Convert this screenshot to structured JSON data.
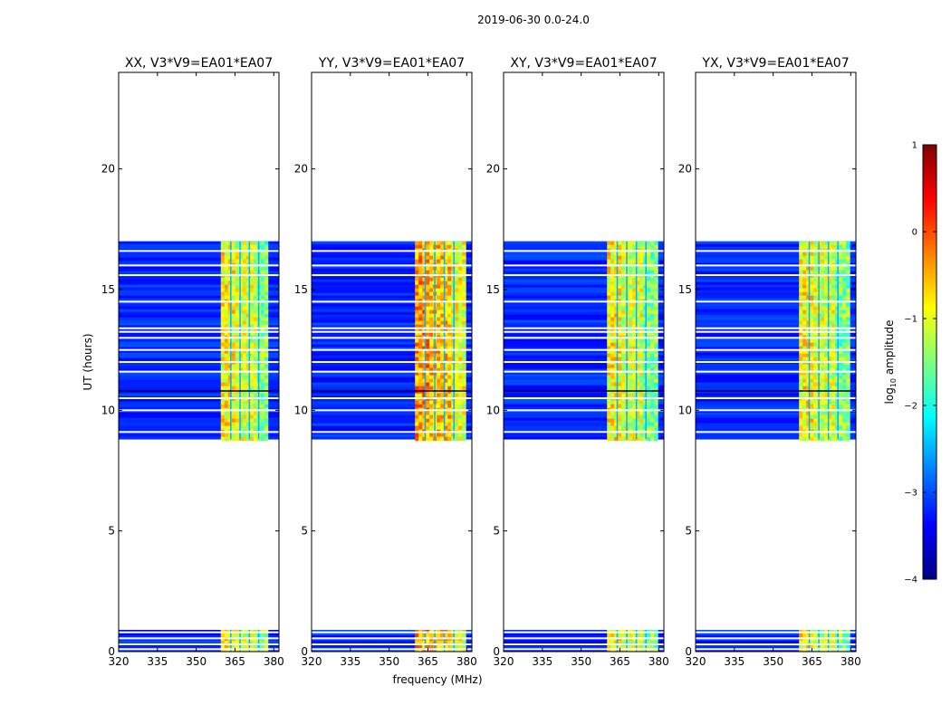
{
  "chart_data": {
    "type": "heatmap",
    "title": "2019-06-30 0.0-24.0",
    "xlabel": "frequency (MHz)",
    "ylabel": "UT (hours)",
    "xlim": [
      320,
      382
    ],
    "ylim": [
      0,
      24
    ],
    "xticks": [
      "320",
      "335",
      "350",
      "365",
      "380"
    ],
    "yticks": [
      "0",
      "5",
      "10",
      "15",
      "20"
    ],
    "colorbar": {
      "label": "log",
      "label_sub": "10",
      "label_rest": " amplitude",
      "range": [
        -4,
        1
      ],
      "ticks": [
        "1",
        "0",
        "−1",
        "−2",
        "−3",
        "−4"
      ],
      "colormap": [
        "#00007f",
        "#0000ff",
        "#007fff",
        "#00ffff",
        "#7fff7f",
        "#ffff00",
        "#ff7f00",
        "#ff0000",
        "#7f0000"
      ]
    },
    "panels": [
      {
        "title": "XX, V3*V9=EA01*EA07",
        "band_start_mhz": 359.5,
        "band_end_mhz": 377.5,
        "band_level": "medium"
      },
      {
        "title": "YY, V3*V9=EA01*EA07",
        "band_start_mhz": 360.0,
        "band_end_mhz": 378.5,
        "band_level": "high"
      },
      {
        "title": "XY, V3*V9=EA01*EA07",
        "band_start_mhz": 360.0,
        "band_end_mhz": 378.5,
        "band_level": "medium"
      },
      {
        "title": "YX, V3*V9=EA01*EA07",
        "band_start_mhz": 360.0,
        "band_end_mhz": 378.5,
        "band_level": "medium"
      }
    ],
    "data_time_ranges_hours": [
      [
        0.0,
        0.9
      ],
      [
        8.8,
        17.0
      ]
    ],
    "dark_time_lines_hours": [
      10.8
    ],
    "flagged_time_lines_hours": [
      0.1,
      0.3,
      0.55,
      0.8,
      9.1,
      10.0,
      10.5,
      11.6,
      12.0,
      12.5,
      13.0,
      13.25,
      13.4,
      14.5,
      15.6,
      16.0,
      16.6
    ],
    "background_level": "low"
  }
}
